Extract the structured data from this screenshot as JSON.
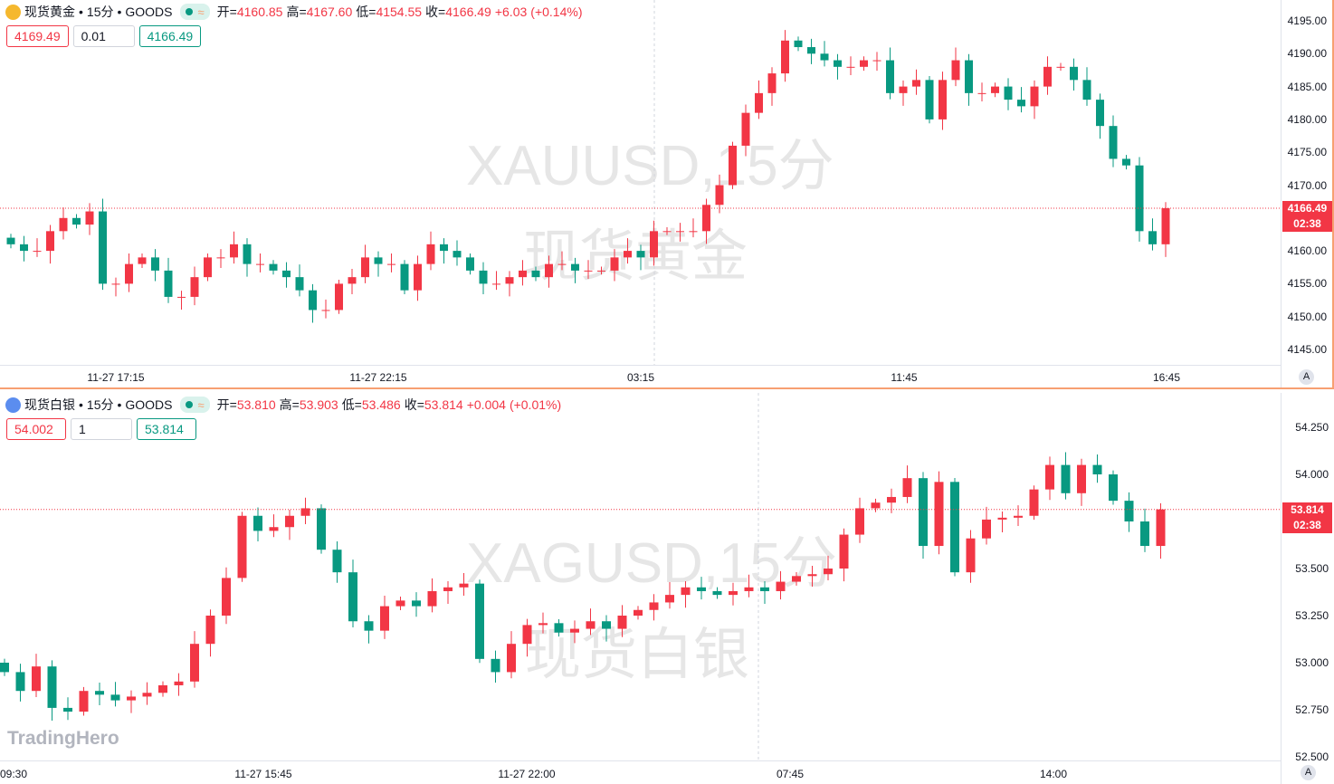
{
  "colors": {
    "up": "#f23645",
    "down": "#089981",
    "accent": "#f7a072"
  },
  "panes": [
    {
      "symbol_name": "现货黄金",
      "interval": "15分",
      "exchange": "GOODS",
      "open_label": "开=",
      "open": "4160.85",
      "high_label": "高=",
      "high": "4167.60",
      "low_label": "低=",
      "low": "4154.55",
      "close_label": "收=",
      "close": "4166.49",
      "change": "+6.03",
      "change_pct": "(+0.14%)",
      "sell_price": "4169.49",
      "quantity": "0.01",
      "buy_price": "4166.49",
      "watermark_ticker": "XAUUSD,15分",
      "watermark_name": "现货黄金",
      "last_price": "4166.49",
      "countdown": "02:38",
      "auto_label": "A",
      "icon": "gold-bars-icon"
    },
    {
      "symbol_name": "现货白银",
      "interval": "15分",
      "exchange": "GOODS",
      "open_label": "开=",
      "open": "53.810",
      "high_label": "高=",
      "high": "53.903",
      "low_label": "低=",
      "low": "53.486",
      "close_label": "收=",
      "close": "53.814",
      "change": "+0.004",
      "change_pct": "(+0.01%)",
      "sell_price": "54.002",
      "quantity": "1",
      "buy_price": "53.814",
      "watermark_ticker": "XAGUSD,15分",
      "watermark_name": "现货白银",
      "last_price": "53.814",
      "countdown": "02:38",
      "auto_label": "A",
      "icon": "silver-icon"
    }
  ],
  "logo": "TradingHero",
  "chart_data": [
    {
      "type": "candlestick",
      "symbol": "XAUUSD",
      "ylim": [
        4142,
        4197
      ],
      "yticks": [
        "4145.00",
        "4150.00",
        "4155.00",
        "4160.00",
        "4165.00",
        "4170.00",
        "4175.00",
        "4180.00",
        "4185.00",
        "4190.00",
        "4195.00"
      ],
      "xticks": [
        "11-27 17:15",
        "11-27 22:15",
        "03:15",
        "11:45",
        "16:45"
      ],
      "first_open": 4162,
      "close": [
        4161,
        4160,
        4160,
        4163,
        4165,
        4164,
        4166,
        4155,
        4155,
        4158,
        4159,
        4157,
        4153,
        4153,
        4156,
        4159,
        4159,
        4161,
        4158,
        4158,
        4157,
        4156,
        4154,
        4151,
        4151,
        4155,
        4156,
        4159,
        4158,
        4158,
        4154,
        4158,
        4161,
        4160,
        4159,
        4157,
        4155,
        4155,
        4156,
        4157,
        4156,
        4158,
        4158,
        4157,
        4157,
        4157,
        4159,
        4160,
        4159,
        4163,
        4163,
        4163,
        4163,
        4167,
        4170,
        4176,
        4181,
        4184,
        4187,
        4192,
        4191,
        4190,
        4189,
        4188,
        4188,
        4189,
        4189,
        4184,
        4185,
        4186,
        4180,
        4186,
        4189,
        4184,
        4184,
        4185,
        4183,
        4182,
        4185,
        4188,
        4188,
        4186,
        4183,
        4179,
        4174,
        4173,
        4163,
        4161,
        4166.49
      ],
      "last_price": 4166.49
    },
    {
      "type": "candlestick",
      "symbol": "XAGUSD",
      "ylim": [
        52.5,
        54.3
      ],
      "yticks": [
        "52.500",
        "52.750",
        "53.000",
        "53.250",
        "53.500",
        "53.750",
        "54.000",
        "54.250"
      ],
      "xticks": [
        "09:30",
        "11-27 15:45",
        "11-27 22:00",
        "07:45",
        "14:00"
      ],
      "first_open": 53.0,
      "close": [
        52.95,
        52.85,
        52.98,
        52.76,
        52.74,
        52.85,
        52.83,
        52.8,
        52.82,
        52.84,
        52.88,
        52.9,
        53.1,
        53.25,
        53.45,
        53.78,
        53.7,
        53.72,
        53.78,
        53.82,
        53.6,
        53.48,
        53.22,
        53.17,
        53.3,
        53.33,
        53.3,
        53.38,
        53.4,
        53.42,
        53.02,
        52.95,
        53.1,
        53.2,
        53.21,
        53.16,
        53.18,
        53.22,
        53.18,
        53.25,
        53.28,
        53.32,
        53.36,
        53.4,
        53.38,
        53.36,
        53.38,
        53.4,
        53.38,
        53.43,
        53.46,
        53.47,
        53.5,
        53.68,
        53.82,
        53.85,
        53.88,
        53.98,
        53.62,
        53.96,
        53.48,
        53.66,
        53.76,
        53.77,
        53.78,
        53.92,
        54.05,
        53.9,
        54.05,
        54.0,
        53.86,
        53.75,
        53.62,
        53.814
      ],
      "last_price": 53.814
    }
  ]
}
